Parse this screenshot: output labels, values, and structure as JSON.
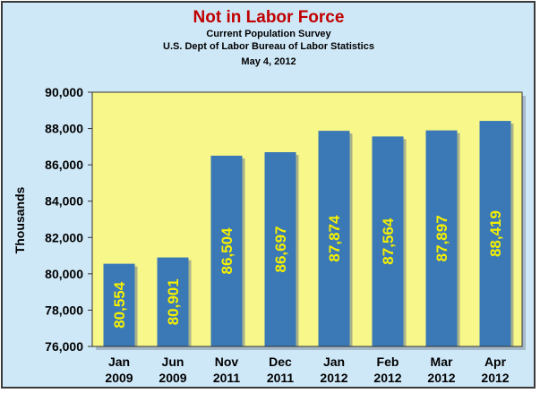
{
  "colors": {
    "background": "#cfe8f8",
    "plot_area": "#f8f78a",
    "bar": "#3a78b6",
    "bar_label": "#f5f000",
    "title": "#c00000"
  },
  "chart_data": {
    "type": "bar",
    "title": "Not in Labor Force",
    "subtitle_lines": [
      "Current Population Survey",
      "U.S. Dept of Labor Bureau of Labor Statistics",
      "May 4, 2012"
    ],
    "xlabel": "",
    "ylabel": "Thousands",
    "ylim": [
      76000,
      90000
    ],
    "yticks": [
      "76,000",
      "78,000",
      "80,000",
      "82,000",
      "84,000",
      "86,000",
      "88,000",
      "90,000"
    ],
    "ytick_values": [
      76000,
      78000,
      80000,
      82000,
      84000,
      86000,
      88000,
      90000
    ],
    "categories": [
      [
        "Jan",
        "2009"
      ],
      [
        "Jun",
        "2009"
      ],
      [
        "Nov",
        "2011"
      ],
      [
        "Dec",
        "2011"
      ],
      [
        "Jan",
        "2012"
      ],
      [
        "Feb",
        "2012"
      ],
      [
        "Mar",
        "2012"
      ],
      [
        "Apr",
        "2012"
      ]
    ],
    "values": [
      80554,
      80901,
      86504,
      86697,
      87874,
      87564,
      87897,
      88419
    ],
    "data_labels": [
      "80,554",
      "80,901",
      "86,504",
      "86,697",
      "87,874",
      "87,564",
      "87,897",
      "88,419"
    ],
    "grid": false,
    "legend": "none"
  }
}
